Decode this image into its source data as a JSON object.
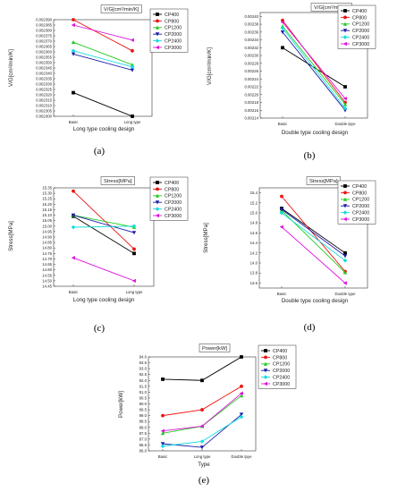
{
  "colors": {
    "CP400": "#000000",
    "CP800": "#ee1111",
    "CP1200": "#22cc22",
    "CP2000": "#1a1aaa",
    "CP2400": "#11dddd",
    "CP3000": "#dd11dd"
  },
  "chart_data": [
    {
      "id": "a",
      "type": "line",
      "caption": "(a)",
      "title": "V/G[cm²/min/K]",
      "xlabel": "Long type cooling design",
      "ylabel": "V/G[cm²/min/K]",
      "categories": [
        "Basic",
        "Long type"
      ],
      "ylim": [
        0.0023,
        0.00239
      ],
      "yticks": [
        "0.002390",
        "0.002385",
        "0.002380",
        "0.002375",
        "0.002370",
        "0.002365",
        "0.002360",
        "0.002355",
        "0.002350",
        "0.002345",
        "0.002340",
        "0.002335",
        "0.002330",
        "0.002325",
        "0.002320",
        "0.002315",
        "0.002310",
        "0.002305",
        "0.002300"
      ],
      "series": [
        {
          "name": "CP400",
          "values": [
            0.002322,
            0.0023
          ]
        },
        {
          "name": "CP800",
          "values": [
            0.00239,
            0.002361
          ]
        },
        {
          "name": "CP1200",
          "values": [
            0.002369,
            0.002348
          ]
        },
        {
          "name": "CP2000",
          "values": [
            0.002358,
            0.002343
          ]
        },
        {
          "name": "CP2400",
          "values": [
            0.002361,
            0.002346
          ]
        },
        {
          "name": "CP3000",
          "values": [
            0.002385,
            0.002371
          ]
        }
      ]
    },
    {
      "id": "b",
      "type": "line",
      "caption": "(b)",
      "title": "V/G[cm²/min/K]",
      "xlabel": "Double type cooling design",
      "ylabel": "V/G[cm²/min/K]",
      "categories": [
        "Basic",
        "Double tpye"
      ],
      "ylim": [
        0.00214,
        0.00241
      ],
      "yticks": [
        "0.00240",
        "0.00238",
        "0.00236",
        "0.00234",
        "0.00232",
        "0.00230",
        "0.00228",
        "0.00226",
        "0.00224",
        "0.00222",
        "0.00220",
        "0.00218",
        "0.00216",
        "0.00214"
      ],
      "series": [
        {
          "name": "CP400",
          "values": [
            0.00232,
            0.00222
          ]
        },
        {
          "name": "CP800",
          "values": [
            0.00239,
            0.00218
          ]
        },
        {
          "name": "CP1200",
          "values": [
            0.002375,
            0.002175
          ]
        },
        {
          "name": "CP2000",
          "values": [
            0.00236,
            0.00216
          ]
        },
        {
          "name": "CP2400",
          "values": [
            0.00237,
            0.002165
          ]
        },
        {
          "name": "CP3000",
          "values": [
            0.002385,
            0.00219
          ]
        }
      ]
    },
    {
      "id": "c",
      "type": "line",
      "caption": "(c)",
      "title": "Stress[MPa]",
      "xlabel": "Long type cooling design",
      "ylabel": "Stress[MPa]",
      "categories": [
        "Basic",
        "Long type"
      ],
      "ylim": [
        14.45,
        15.35
      ],
      "yticks": [
        "15.35",
        "15.30",
        "15.25",
        "15.20",
        "15.15",
        "15.10",
        "15.05",
        "15.00",
        "14.95",
        "14.90",
        "14.85",
        "14.80",
        "14.75",
        "14.70",
        "14.65",
        "14.60",
        "14.55",
        "14.50",
        "14.45"
      ],
      "series": [
        {
          "name": "CP400",
          "values": [
            15.09,
            14.75
          ]
        },
        {
          "name": "CP800",
          "values": [
            15.32,
            14.79
          ]
        },
        {
          "name": "CP1200",
          "values": [
            15.1,
            14.99
          ]
        },
        {
          "name": "CP2000",
          "values": [
            15.1,
            14.94
          ]
        },
        {
          "name": "CP2400",
          "values": [
            14.99,
            15.0
          ]
        },
        {
          "name": "CP3000",
          "values": [
            14.71,
            14.5
          ]
        }
      ]
    },
    {
      "id": "d",
      "type": "line",
      "caption": "(d)",
      "title": "Stress[MPa]",
      "xlabel": "Double type cooling design",
      "ylabel": "Stress[MPa]",
      "categories": [
        "Basic",
        "Double type"
      ],
      "ylim": [
        13.5,
        15.5
      ],
      "yticks": [
        "15.4",
        "15.2",
        "15.0",
        "14.8",
        "14.6",
        "14.4",
        "14.2",
        "14.0",
        "13.8",
        "13.6"
      ],
      "series": [
        {
          "name": "CP400",
          "values": [
            15.09,
            14.2
          ]
        },
        {
          "name": "CP800",
          "values": [
            15.33,
            13.83
          ]
        },
        {
          "name": "CP1200",
          "values": [
            15.05,
            13.81
          ]
        },
        {
          "name": "CP2000",
          "values": [
            15.07,
            14.14
          ]
        },
        {
          "name": "CP2400",
          "values": [
            15.0,
            14.05
          ]
        },
        {
          "name": "CP3000",
          "values": [
            14.72,
            13.6
          ]
        }
      ]
    },
    {
      "id": "e",
      "type": "line",
      "caption": "(e)",
      "title": "Power[kW]",
      "xlabel": "Type",
      "ylabel": "Power[kW]",
      "categories": [
        "Basic",
        "Long type",
        "Double tpye"
      ],
      "ylim": [
        86.0,
        94.0
      ],
      "yticks": [
        "94.0",
        "93.5",
        "93.0",
        "92.5",
        "92.0",
        "91.5",
        "91.0",
        "90.5",
        "90.0",
        "89.5",
        "89.0",
        "88.5",
        "88.0",
        "87.5",
        "87.0",
        "86.5",
        "86.0"
      ],
      "series": [
        {
          "name": "CP400",
          "values": [
            92.1,
            92.0,
            94.0
          ]
        },
        {
          "name": "CP800",
          "values": [
            89.0,
            89.5,
            91.5
          ]
        },
        {
          "name": "CP1200",
          "values": [
            87.5,
            88.1,
            90.7
          ]
        },
        {
          "name": "CP2000",
          "values": [
            86.6,
            86.3,
            89.1
          ]
        },
        {
          "name": "CP2400",
          "values": [
            86.4,
            86.8,
            88.9
          ]
        },
        {
          "name": "CP3000",
          "values": [
            87.7,
            88.1,
            90.9
          ]
        }
      ]
    }
  ]
}
